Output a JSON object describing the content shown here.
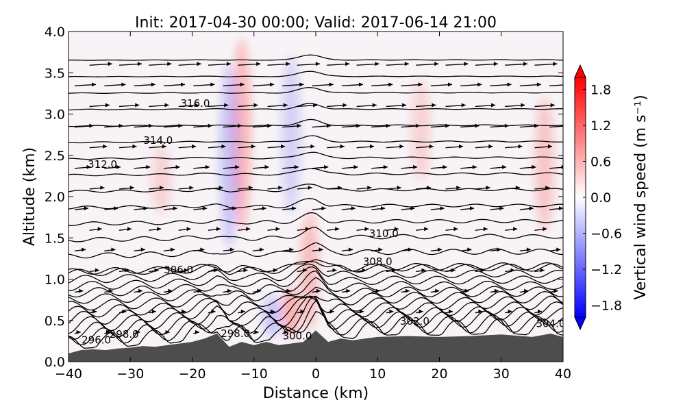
{
  "chart_data": {
    "type": "contour_cross_section",
    "title": "Init: 2017-04-30 00:00; Valid: 2017-06-14 21:00",
    "xlabel": "Distance (km)",
    "ylabel": "Altitude (km)",
    "xlim": [
      -40,
      40
    ],
    "ylim": [
      0,
      4
    ],
    "xticks": [
      {
        "value": -40,
        "label": "−40"
      },
      {
        "value": -30,
        "label": "−30"
      },
      {
        "value": -20,
        "label": "−20"
      },
      {
        "value": -10,
        "label": "−10"
      },
      {
        "value": 0,
        "label": "0"
      },
      {
        "value": 10,
        "label": "10"
      },
      {
        "value": 20,
        "label": "20"
      },
      {
        "value": 30,
        "label": "30"
      },
      {
        "value": 40,
        "label": "40"
      }
    ],
    "yticks": [
      {
        "value": 0.0,
        "label": "0.0"
      },
      {
        "value": 0.5,
        "label": "0.5"
      },
      {
        "value": 1.0,
        "label": "1.0"
      },
      {
        "value": 1.5,
        "label": "1.5"
      },
      {
        "value": 2.0,
        "label": "2.0"
      },
      {
        "value": 2.5,
        "label": "2.5"
      },
      {
        "value": 3.0,
        "label": "3.0"
      },
      {
        "value": 3.5,
        "label": "3.5"
      },
      {
        "value": 4.0,
        "label": "4.0"
      }
    ],
    "colorbar": {
      "label": "Vertical wind speed (m s⁻¹)",
      "range": [
        -2.0,
        2.0
      ],
      "ticks": [
        {
          "value": 1.8,
          "label": "1.8"
        },
        {
          "value": 1.2,
          "label": "1.2"
        },
        {
          "value": 0.6,
          "label": "0.6"
        },
        {
          "value": 0.0,
          "label": "0.0"
        },
        {
          "value": -0.6,
          "label": "−0.6"
        },
        {
          "value": -1.2,
          "label": "−1.2"
        },
        {
          "value": -1.8,
          "label": "−1.8"
        }
      ],
      "colors": {
        "negative": "#0000ff",
        "neutral": "#ffffff",
        "positive": "#ff0000"
      }
    },
    "terrain": {
      "color": "#4d4d4d",
      "x": [
        -40,
        -38,
        -36,
        -34,
        -32,
        -30,
        -28,
        -26,
        -24,
        -22,
        -20,
        -18,
        -16,
        -14,
        -12,
        -10,
        -8,
        -6,
        -4,
        -2,
        0,
        2,
        4,
        6,
        8,
        10,
        15,
        20,
        25,
        30,
        35,
        38,
        40
      ],
      "altitude": [
        0.1,
        0.14,
        0.15,
        0.14,
        0.16,
        0.17,
        0.19,
        0.18,
        0.2,
        0.22,
        0.24,
        0.28,
        0.34,
        0.18,
        0.24,
        0.2,
        0.24,
        0.2,
        0.22,
        0.24,
        0.38,
        0.24,
        0.28,
        0.26,
        0.28,
        0.3,
        0.31,
        0.3,
        0.31,
        0.33,
        0.3,
        0.34,
        0.3
      ]
    },
    "contour_labels": [
      {
        "text": "316.0",
        "x": -19.5,
        "y": 3.13
      },
      {
        "text": "314.0",
        "x": -25.5,
        "y": 2.68
      },
      {
        "text": "312.0",
        "x": -34.5,
        "y": 2.39
      },
      {
        "text": "310.0",
        "x": 11.0,
        "y": 1.55
      },
      {
        "text": "308.0",
        "x": 10.0,
        "y": 1.21
      },
      {
        "text": "306.0",
        "x": -22.2,
        "y": 1.11
      },
      {
        "text": "302.0",
        "x": 16.0,
        "y": 0.49
      },
      {
        "text": "304.0",
        "x": 38.0,
        "y": 0.46
      },
      {
        "text": "300.0",
        "x": -3.0,
        "y": 0.31
      },
      {
        "text": "298.0",
        "x": -31.0,
        "y": 0.33
      },
      {
        "text": "298.0",
        "x": -13.0,
        "y": 0.34
      },
      {
        "text": "296.0",
        "x": -35.5,
        "y": 0.26
      }
    ],
    "vertical_velocity_features": [
      {
        "x": -12,
        "y_bottom": 1.6,
        "y_top": 3.9,
        "w": 1.0
      },
      {
        "x": -14,
        "y_bottom": 1.4,
        "y_top": 3.6,
        "w": -0.8
      },
      {
        "x": -4,
        "y_bottom": 1.8,
        "y_top": 3.7,
        "w": -0.6
      },
      {
        "x": -1,
        "y_bottom": 0.4,
        "y_top": 1.8,
        "w": 0.9
      },
      {
        "x": -4,
        "y_bottom": 0.3,
        "y_top": 0.9,
        "w": 1.2
      },
      {
        "x": 17,
        "y_bottom": 2.2,
        "y_top": 3.4,
        "w": 0.6
      },
      {
        "x": 37,
        "y_bottom": 1.6,
        "y_top": 3.2,
        "w": 0.8
      },
      {
        "x": -25,
        "y_bottom": 1.8,
        "y_top": 2.6,
        "w": 0.6
      },
      {
        "x": -7,
        "y_bottom": 0.3,
        "y_top": 0.8,
        "w": -0.8
      }
    ]
  }
}
